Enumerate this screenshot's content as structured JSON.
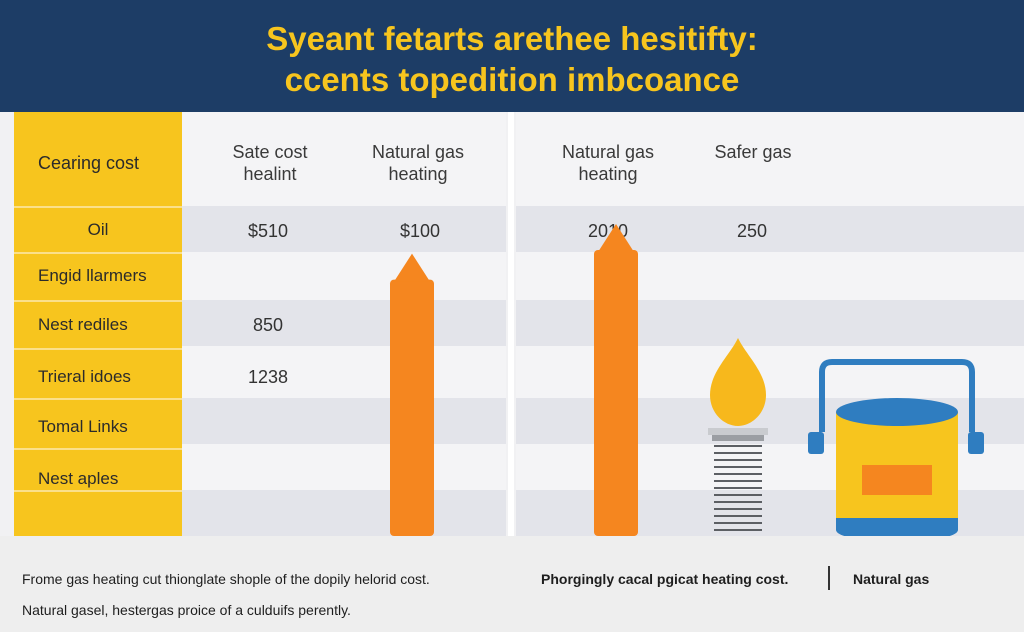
{
  "title": {
    "line1": "Syeant fetarts arethee hesitifty:",
    "line2": "ccents topedition imbcoance"
  },
  "table": {
    "corner_label": "Cearing cost",
    "columns": [
      {
        "line1": "Sate cost",
        "line2": "healint"
      },
      {
        "line1": "Natural gas",
        "line2": "heating"
      },
      {
        "line1": "Natural gas",
        "line2": "heating"
      },
      {
        "line1": "Safer gas",
        "line2": ""
      }
    ],
    "rows": [
      {
        "label": "Oil",
        "values": [
          "$510",
          "$100",
          "2010",
          "250"
        ]
      },
      {
        "label": "Engid llarmers",
        "values": [
          "",
          "",
          "",
          ""
        ]
      },
      {
        "label": "Nest rediles",
        "values": [
          "850",
          "",
          "",
          ""
        ]
      },
      {
        "label": "Trieral idoes",
        "values": [
          "1238",
          "",
          "",
          ""
        ]
      },
      {
        "label": "Tomal Links",
        "values": [
          "",
          "",
          "",
          ""
        ]
      },
      {
        "label": "Nest aples",
        "values": [
          "",
          "",
          "",
          ""
        ]
      }
    ]
  },
  "chart_data": {
    "type": "bar",
    "categories": [
      "Natural gas heating",
      "Natural gas heating"
    ],
    "series": [
      {
        "values": [
          100,
          2010
        ]
      }
    ],
    "title": "Syeant fetarts arethee hesitifty: ccents topedition imbcoance"
  },
  "footer": {
    "left_line1": "Frome gas heating cut thionglate shople of the dopily helorid cost.",
    "left_line2": "Natural gasel, hestergas proice of a culduifs perently.",
    "right_text": "Phorgingly cacal pgicat heating cost.",
    "right_label": "Natural gas"
  },
  "colors": {
    "header_bg": "#1d3d66",
    "title": "#f7c51e",
    "accent_yellow": "#f7c51e",
    "bar_orange": "#f5861f",
    "flame_yellow": "#f7b81c",
    "tank_blue": "#2f7dc0"
  },
  "icons": [
    "flame-burner-icon",
    "gas-tank-icon"
  ]
}
